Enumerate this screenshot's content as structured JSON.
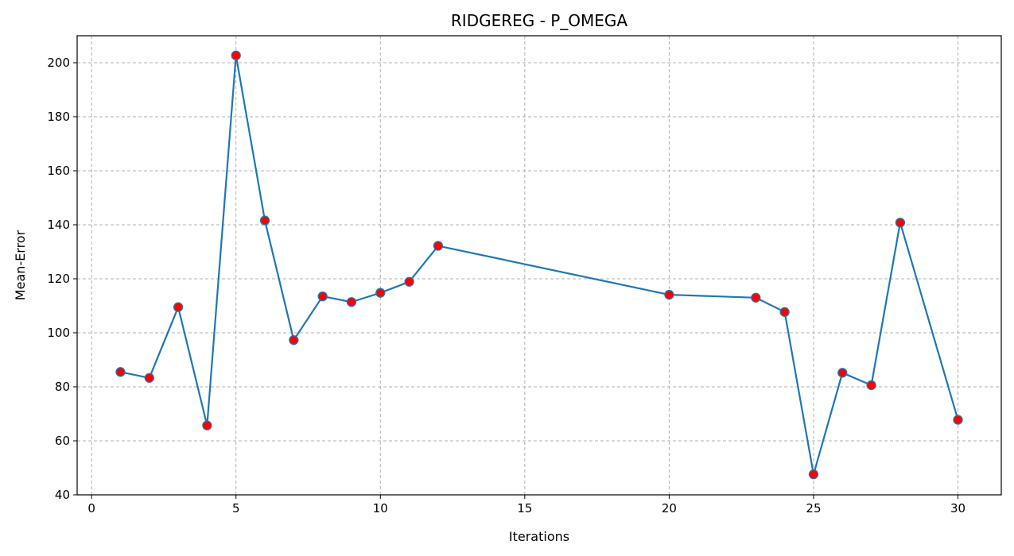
{
  "chart_data": {
    "type": "line",
    "title": "RIDGEREG - P_OMEGA",
    "xlabel": "Iterations",
    "ylabel": "Mean-Error",
    "xlim": [
      -0.5,
      31.5
    ],
    "ylim": [
      40,
      210
    ],
    "xticks": [
      0,
      5,
      10,
      15,
      20,
      25,
      30
    ],
    "yticks": [
      40,
      60,
      80,
      100,
      120,
      140,
      160,
      180,
      200
    ],
    "grid": true,
    "line_color": "#1f77b4",
    "marker_face_color": "#ff0000",
    "marker_edge_color": "#1f77b4",
    "series": [
      {
        "x": [
          1,
          2,
          3,
          4,
          5,
          6,
          7,
          8,
          9,
          10,
          11,
          12,
          20,
          23,
          24,
          25,
          26,
          27,
          28,
          30
        ],
        "values": [
          85.5,
          83.3,
          109.5,
          65.7,
          202.7,
          141.6,
          97.3,
          113.5,
          111.4,
          114.8,
          118.9,
          132.2,
          114.1,
          113.0,
          107.7,
          47.6,
          85.2,
          80.6,
          140.8,
          67.8
        ]
      }
    ]
  }
}
